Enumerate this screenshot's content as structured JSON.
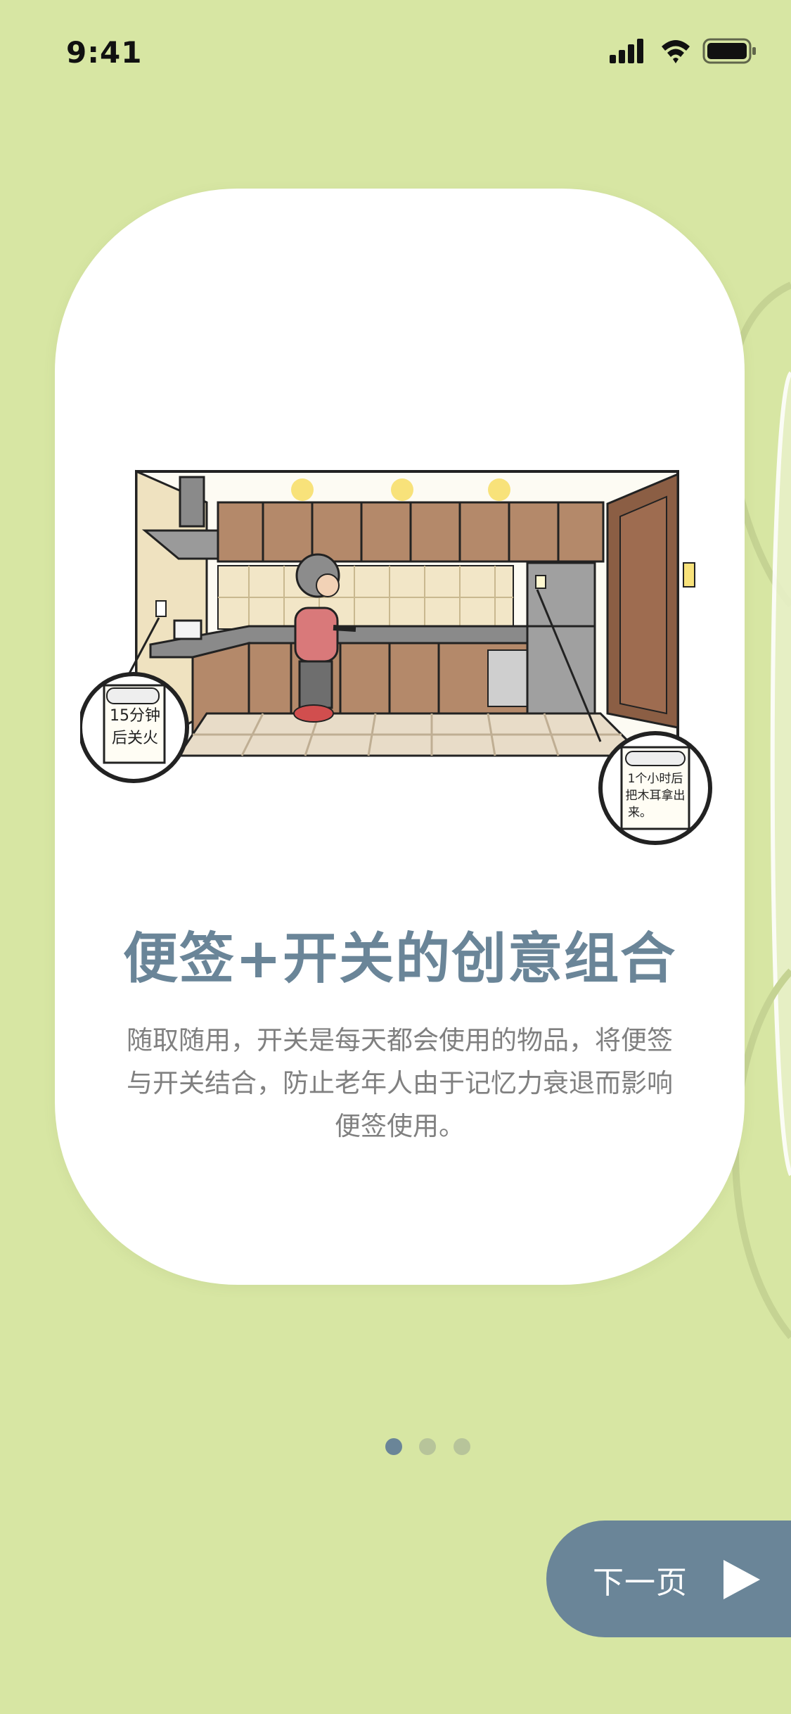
{
  "status_bar": {
    "time": "9:41",
    "icons": [
      "signal-icon",
      "wifi-icon",
      "battery-icon"
    ]
  },
  "card": {
    "title": "便签+开关的创意组合",
    "description": "随取随用，开关是每天都会使用的物品，将便签与开关结合，防止老年人由于记忆力衰退而影响便签使用。",
    "illustration": {
      "note_left_line1": "15分钟",
      "note_left_line2": "后关火",
      "note_right_line1": "1个小时后",
      "note_right_line2": "把木耳拿出",
      "note_right_line3": "来。"
    }
  },
  "pager": {
    "total": 3,
    "active_index": 0
  },
  "next_button": {
    "label": "下一页",
    "icon": "play-arrow-icon"
  },
  "colors": {
    "background": "#d7e6a3",
    "card": "#ffffff",
    "accent": "#6a8598",
    "text_secondary": "#808080",
    "dot_inactive": "#b7c49a"
  }
}
